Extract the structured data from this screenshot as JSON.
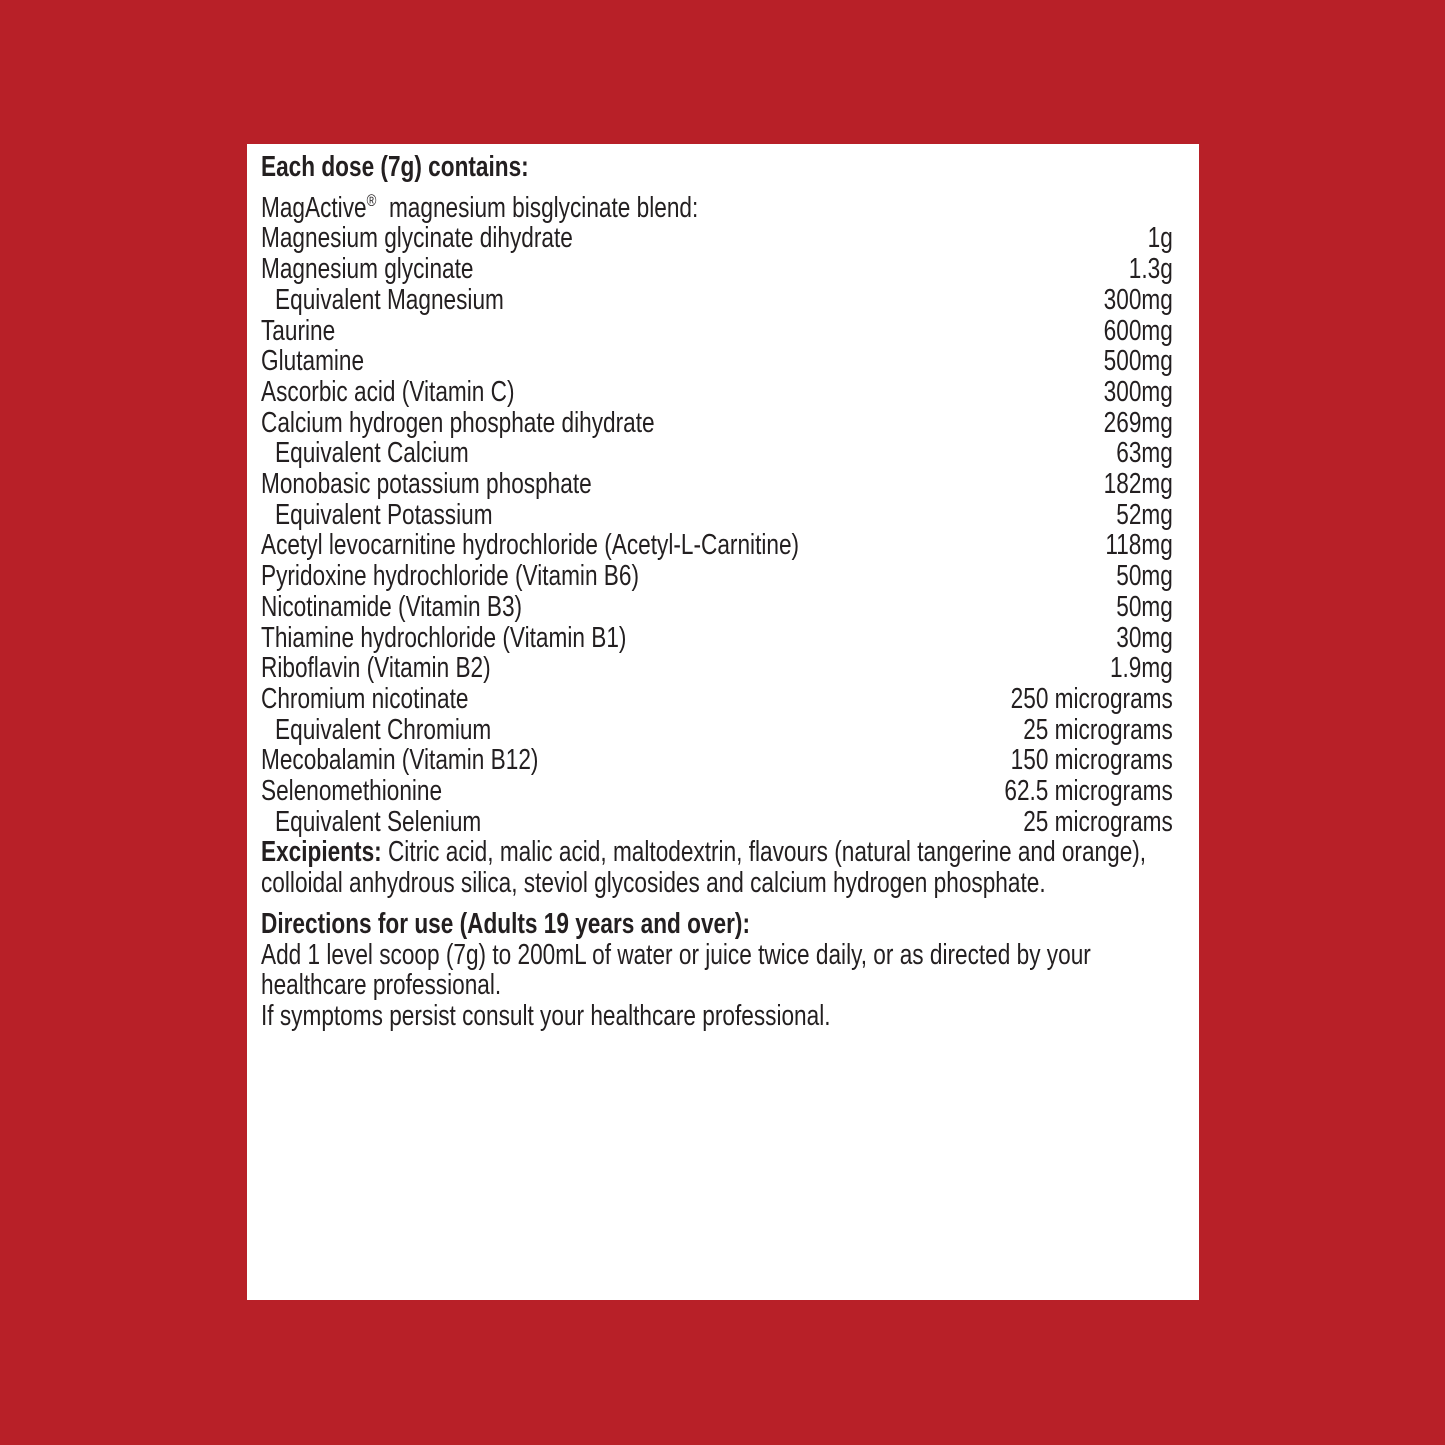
{
  "colors": {
    "background": "#b82028",
    "panel": "#ffffff",
    "text": "#231f20"
  },
  "heading": "Each dose (7g) contains:",
  "blend": {
    "brand": "MagActive",
    "mark": "®",
    "rest": "  magnesium bisglycinate blend:"
  },
  "ingredients": [
    {
      "name": "Magnesium glycinate dihydrate",
      "amount": "1g"
    },
    {
      "name": "Magnesium glycinate",
      "amount": "1.3g"
    },
    {
      "name": "Equivalent Magnesium",
      "amount": "300mg",
      "indent": true
    },
    {
      "name": "Taurine",
      "amount": "600mg"
    },
    {
      "name": "Glutamine",
      "amount": "500mg"
    },
    {
      "name": "Ascorbic acid (Vitamin C)",
      "amount": "300mg"
    },
    {
      "name": "Calcium hydrogen phosphate dihydrate",
      "amount": "269mg"
    },
    {
      "name": "Equivalent Calcium",
      "amount": "63mg",
      "indent": true
    },
    {
      "name": "Monobasic potassium phosphate",
      "amount": "182mg"
    },
    {
      "name": "Equivalent Potassium",
      "amount": "52mg",
      "indent": true
    },
    {
      "name": "Acetyl levocarnitine hydrochloride (Acetyl-L-Carnitine)",
      "amount": "118mg"
    },
    {
      "name": "Pyridoxine hydrochloride (Vitamin B6)",
      "amount": "50mg"
    },
    {
      "name": "Nicotinamide (Vitamin B3)",
      "amount": "50mg"
    },
    {
      "name": "Thiamine hydrochloride (Vitamin B1)",
      "amount": "30mg"
    },
    {
      "name": "Riboflavin (Vitamin B2)",
      "amount": "1.9mg"
    },
    {
      "name": "Chromium nicotinate",
      "amount": "250 micrograms"
    },
    {
      "name": "Equivalent Chromium",
      "amount": "25 micrograms",
      "indent": true
    },
    {
      "name": "Mecobalamin (Vitamin B12)",
      "amount": "150 micrograms"
    },
    {
      "name": "Selenomethionine",
      "amount": "62.5 micrograms"
    },
    {
      "name": "Equivalent Selenium",
      "amount": "25 micrograms",
      "indent": true
    }
  ],
  "excipients": {
    "label": "Excipients:",
    "text": " Citric acid, malic acid, maltodextrin, flavours (natural tangerine and orange), colloidal anhydrous silica, steviol glycosides and calcium hydrogen phosphate."
  },
  "directions": {
    "heading": "Directions for use (Adults 19 years and over):",
    "text": "Add 1 level scoop (7g) to 200mL of water or juice twice daily, or as directed by your healthcare professional."
  },
  "warning": "If symptoms persist consult your healthcare professional."
}
